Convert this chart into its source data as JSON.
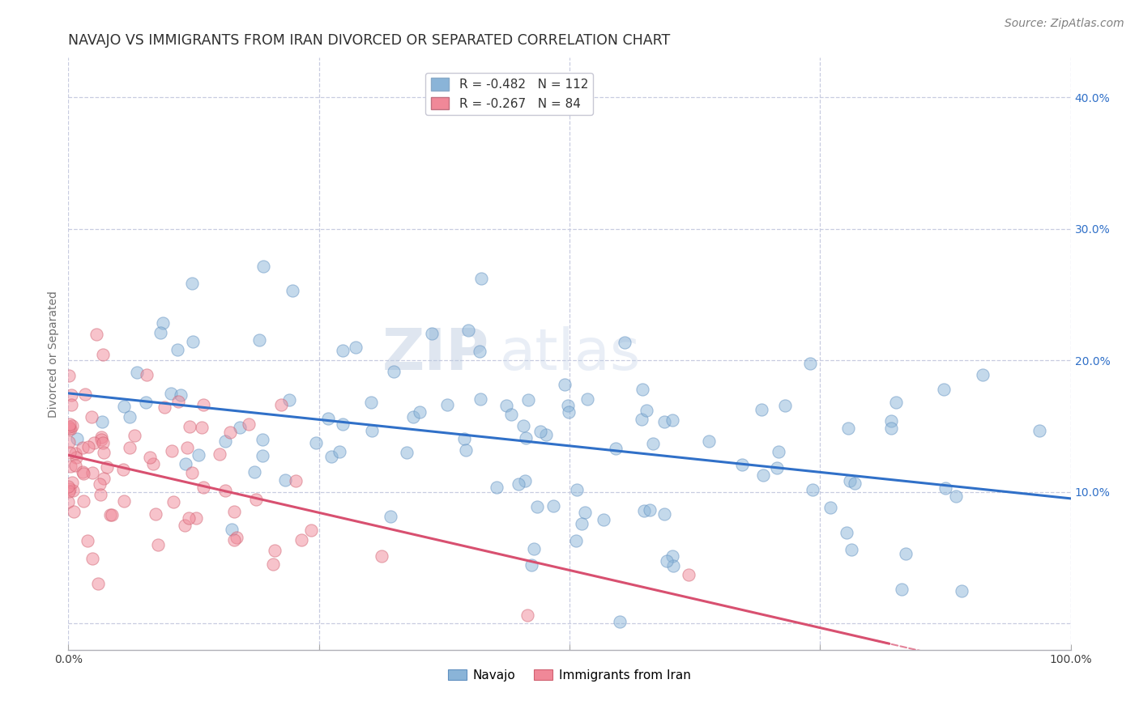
{
  "title": "NAVAJO VS IMMIGRANTS FROM IRAN DIVORCED OR SEPARATED CORRELATION CHART",
  "source_text": "Source: ZipAtlas.com",
  "ylabel": "Divorced or Separated",
  "xlim": [
    0.0,
    1.0
  ],
  "ylim": [
    -0.02,
    0.43
  ],
  "x_ticks": [
    0.0,
    0.25,
    0.5,
    0.75,
    1.0
  ],
  "x_tick_labels": [
    "0.0%",
    "",
    "",
    "",
    "100.0%"
  ],
  "y_ticks": [
    0.0,
    0.1,
    0.2,
    0.3,
    0.4
  ],
  "y_tick_labels": [
    "",
    "10.0%",
    "20.0%",
    "30.0%",
    "40.0%"
  ],
  "legend_entries": [
    {
      "label": "R = -0.482   N = 112",
      "color": "#aac4e4"
    },
    {
      "label": "R = -0.267   N = 84",
      "color": "#f4a7b9"
    }
  ],
  "navajo_R": -0.482,
  "navajo_N": 112,
  "iran_R": -0.267,
  "iran_N": 84,
  "navajo_color": "#8ab4d8",
  "navajo_edge_color": "#6090c0",
  "iran_color": "#f08898",
  "iran_edge_color": "#d06070",
  "navajo_line_color": "#3070c8",
  "iran_line_color": "#d85070",
  "watermark_zip": "#b8c8e0",
  "watermark_atlas": "#c8d8ec",
  "background_color": "#ffffff",
  "grid_color": "#c8cce0",
  "title_color": "#303030",
  "title_fontsize": 12.5,
  "axis_label_fontsize": 10,
  "tick_fontsize": 10,
  "source_fontsize": 10,
  "navajo_seed": 12,
  "iran_seed": 99,
  "navajo_intercept": 0.175,
  "navajo_slope": -0.08,
  "iran_intercept": 0.128,
  "iran_slope": -0.175
}
